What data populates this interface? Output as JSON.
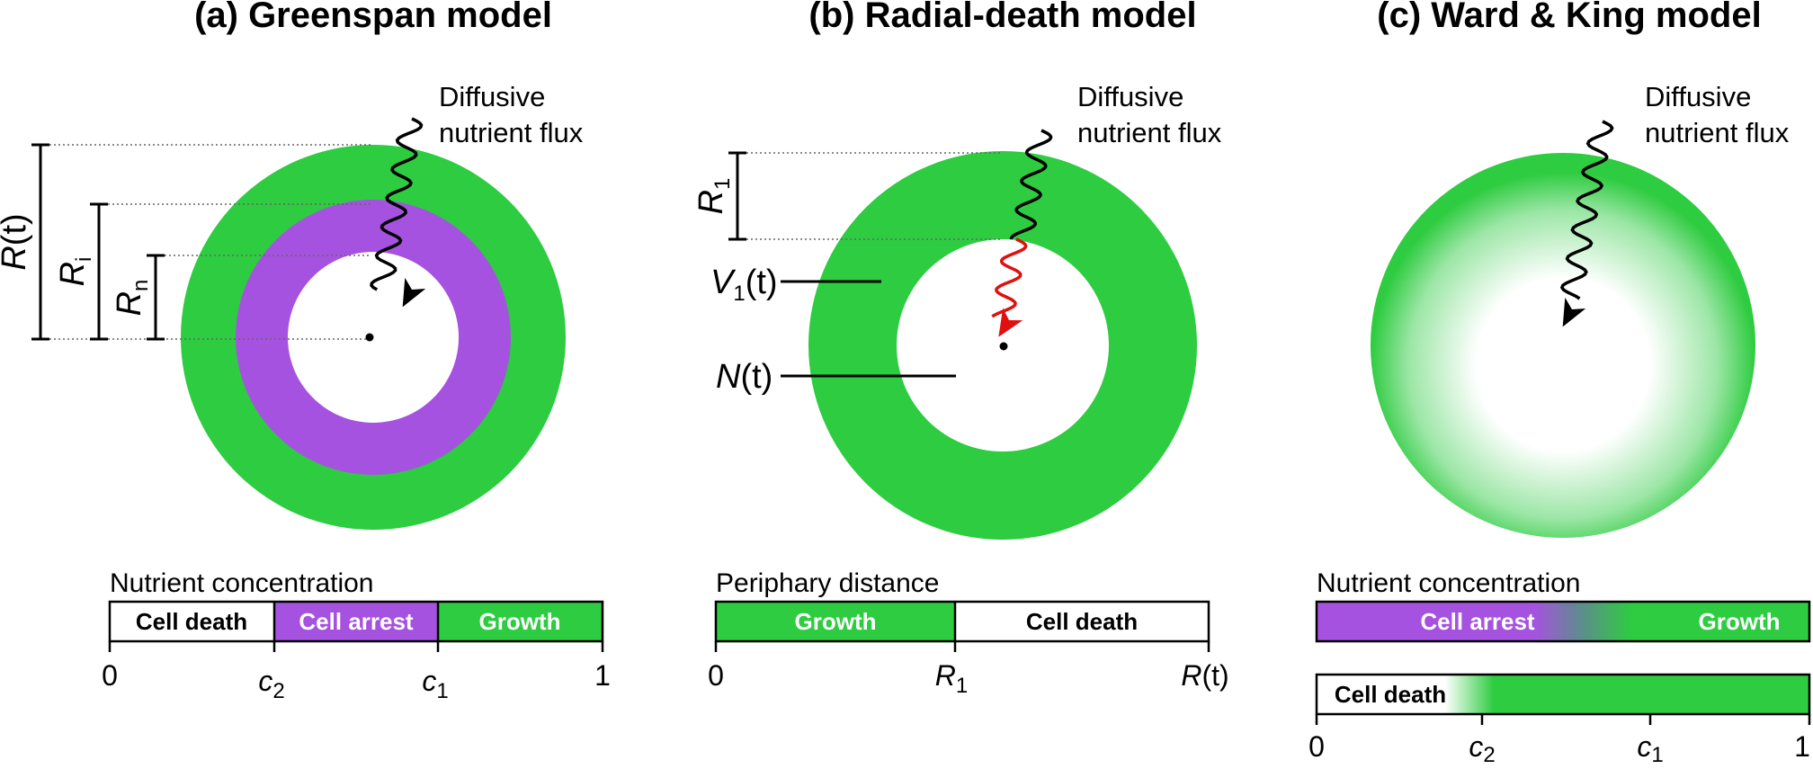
{
  "colors": {
    "growth": "#2ecc40",
    "arrest": "#a652e0",
    "death": "#ffffff",
    "flux": "#000000",
    "flux_inner": "#e01010"
  },
  "panel_a": {
    "title": "(a) Greenspan model",
    "flux_label_1": "Diffusive",
    "flux_label_2": "nutrient flux",
    "dims": {
      "R": "R",
      "R_arg": "(t)",
      "Ri": "R",
      "Ri_sub": "i",
      "Rn": "R",
      "Rn_sub": "n"
    },
    "bar_title": "Nutrient concentration",
    "bar_segments": [
      "Cell death",
      "Cell arrest",
      "Growth"
    ],
    "ticks": {
      "t0": "0",
      "c2": "c",
      "c2_sub": "2",
      "c1": "c",
      "c1_sub": "1",
      "t1": "1"
    }
  },
  "panel_b": {
    "title": "(b) Radial-death model",
    "flux_label_1": "Diffusive",
    "flux_label_2": "nutrient flux",
    "dims": {
      "R1": "R",
      "R1_sub": "1"
    },
    "labels": {
      "V": "V",
      "V_sub": "1",
      "V_arg": "(t)",
      "N": "N",
      "N_arg": "(t)"
    },
    "bar_title": "Periphary distance",
    "bar_segments": [
      "Growth",
      "Cell death"
    ],
    "ticks": {
      "t0": "0",
      "R1": "R",
      "R1_sub": "1",
      "Rt": "R",
      "Rt_arg": "(t)"
    }
  },
  "panel_c": {
    "title": "(c) Ward & King model",
    "flux_label_1": "Diffusive",
    "flux_label_2": "nutrient flux",
    "bar1_segments": [
      "Cell arrest",
      "Growth"
    ],
    "bar_title": "Nutrient concentration",
    "bar2_segments": [
      "Cell death"
    ],
    "ticks": {
      "t0": "0",
      "c2": "c",
      "c2_sub": "2",
      "c1": "c",
      "c1_sub": "1",
      "t1": "1"
    }
  }
}
